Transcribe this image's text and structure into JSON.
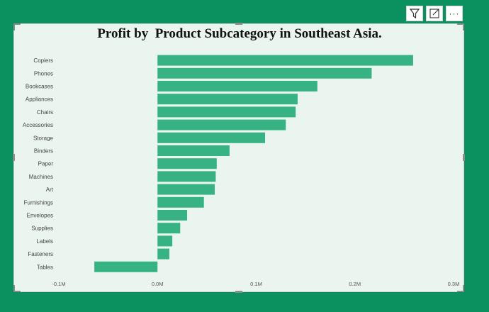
{
  "toolbar": {
    "filter_icon": "filter-icon",
    "focus_icon": "focus-mode-icon",
    "more_icon": "more-options-icon",
    "more_label": "···"
  },
  "colors": {
    "background": "#0b9160",
    "bar": "#37b383",
    "plot_background": "#eaf5f0"
  },
  "chart_data": {
    "type": "bar",
    "orientation": "horizontal",
    "title": "Profit by  Product Subcategory in Southeast Asia.",
    "categories": [
      "Copiers",
      "Phones",
      "Bookcases",
      "Appliances",
      "Chairs",
      "Accessories",
      "Storage",
      "Binders",
      "Paper",
      "Machines",
      "Art",
      "Furnishings",
      "Envelopes",
      "Supplies",
      "Labels",
      "Fasteners",
      "Tables"
    ],
    "values": [
      259000,
      217000,
      162000,
      142000,
      140000,
      130000,
      109000,
      73000,
      60000,
      59000,
      58000,
      47000,
      30000,
      23000,
      15000,
      12000,
      -64000
    ],
    "xlim": [
      -100000,
      300000
    ],
    "xticks": [
      -100000,
      0,
      100000,
      200000,
      300000
    ],
    "xtick_labels": [
      "-0.1M",
      "0.0M",
      "0.1M",
      "0.2M",
      "0.3M"
    ],
    "xlabel": "",
    "ylabel": "",
    "grid": false,
    "legend": "none"
  }
}
